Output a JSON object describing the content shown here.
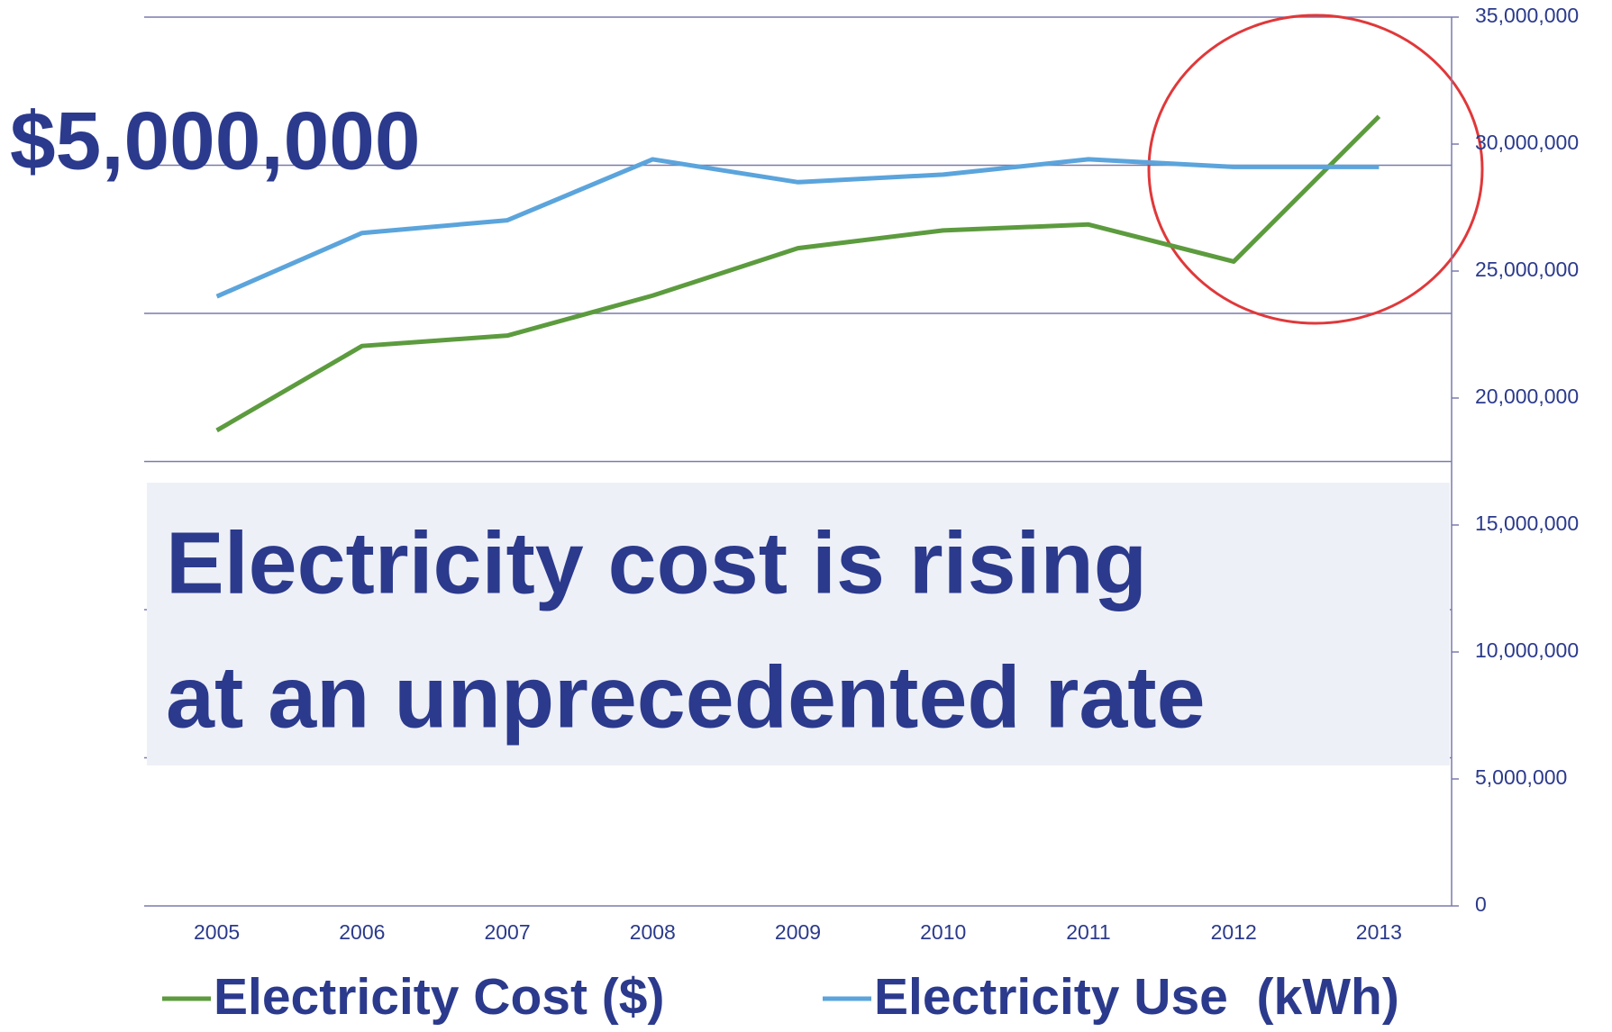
{
  "chart_data": {
    "type": "line",
    "categories": [
      "2005",
      "2006",
      "2007",
      "2008",
      "2009",
      "2010",
      "2011",
      "2012",
      "2013"
    ],
    "series": [
      {
        "name": "Electricity Cost ($)",
        "color": "#5c9b3e",
        "values": [
          3210000,
          3780000,
          3850000,
          4120000,
          4440000,
          4560000,
          4600000,
          4350000,
          5330000
        ]
      },
      {
        "name": "Electricity Use  (kWh)",
        "color": "#5ba4dc",
        "axis": "y2",
        "values": [
          24000000,
          26500000,
          27000000,
          29400000,
          28500000,
          28800000,
          29400000,
          29100000,
          29100000
        ]
      }
    ],
    "ylim": [
      0,
      6000000
    ],
    "yticks": [
      0,
      1000000,
      2000000,
      3000000,
      4000000,
      {
        "value": 5000000,
        "label": "$5,000,000"
      },
      6000000
    ],
    "y2lim": [
      0,
      35000000
    ],
    "y2ticks": [
      {
        "value": 0,
        "label": "0"
      },
      {
        "value": 5000000,
        "label": "5,000,000"
      },
      {
        "value": 10000000,
        "label": "10,000,000"
      },
      {
        "value": 15000000,
        "label": "15,000,000"
      },
      {
        "value": 20000000,
        "label": "20,000,000"
      },
      {
        "value": 25000000,
        "label": "25,000,000"
      },
      {
        "value": 30000000,
        "label": "30,000,000"
      },
      {
        "value": 35000000,
        "label": "35,000,000"
      }
    ],
    "annotation": [
      "Electricity cost is rising",
      "at an unprecedented rate"
    ],
    "grid": true,
    "legend": "bottom"
  }
}
